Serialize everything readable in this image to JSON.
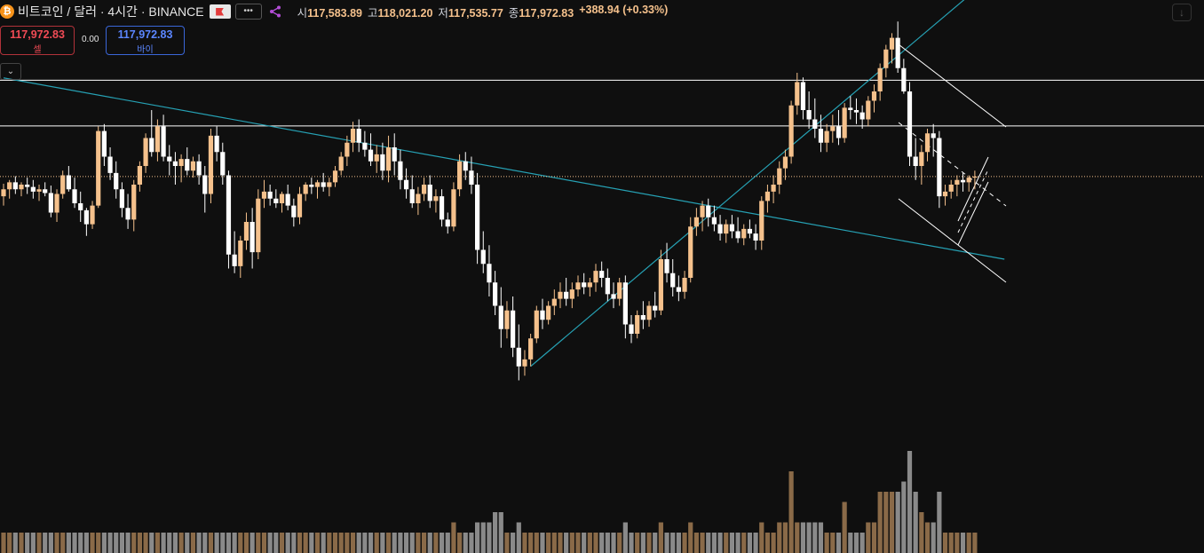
{
  "header": {
    "coin_icon": "bitcoin-icon",
    "coin_glyph": "₿",
    "title": "비트코인 / 달러 · 4시간 · BINANCE",
    "more_glyph": "•••",
    "ohlc": {
      "open_label": "시",
      "open": "117,583.89",
      "high_label": "고",
      "high": "118,021.20",
      "low_label": "저",
      "low": "117,535.77",
      "close_label": "종",
      "close": "117,972.83",
      "change": "+388.94 (+0.33%)"
    }
  },
  "trade": {
    "sell_price": "117,972.83",
    "sell_label": "셀",
    "spread": "0.00",
    "buy_price": "117,972.83",
    "buy_label": "바이"
  },
  "collapse_glyph": "⌄",
  "download_glyph": "↓",
  "colors": {
    "background": "#0f0f0f",
    "up_candle": "#f5c18c",
    "down_candle": "#ffffff",
    "trendline": "#26a1b4",
    "hline": "#ffffff",
    "volume_up": "#8a6a48",
    "volume_down": "#8a8a8a"
  },
  "chart_data": {
    "type": "candlestick",
    "symbol": "BTC/USD",
    "interval": "4h",
    "exchange": "BINANCE",
    "y_range": [
      113000,
      121000
    ],
    "current_price": 117972.83,
    "horizontal_levels": [
      120040,
      119060
    ],
    "candles_note": "approximate values read from chart, [open, high, low, close, volume_k]",
    "candles": [
      [
        117550,
        117820,
        117350,
        117700,
        2
      ],
      [
        117700,
        117900,
        117500,
        117850,
        2
      ],
      [
        117850,
        117980,
        117600,
        117700,
        2
      ],
      [
        117700,
        117850,
        117550,
        117800,
        2
      ],
      [
        117800,
        117950,
        117600,
        117750,
        2
      ],
      [
        117750,
        117900,
        117500,
        117650,
        2
      ],
      [
        117650,
        117800,
        117450,
        117700,
        2
      ],
      [
        117700,
        117850,
        117550,
        117620,
        2
      ],
      [
        117620,
        117780,
        117100,
        117200,
        2
      ],
      [
        117200,
        117700,
        117000,
        117600,
        2
      ],
      [
        117600,
        118100,
        117500,
        118000,
        2
      ],
      [
        118000,
        118200,
        117650,
        117700,
        2
      ],
      [
        117700,
        117950,
        117300,
        117400,
        2
      ],
      [
        117400,
        117650,
        117000,
        117250,
        2
      ],
      [
        117250,
        117300,
        116700,
        116950,
        2
      ],
      [
        116950,
        117450,
        116850,
        117350,
        2
      ],
      [
        117350,
        119050,
        117300,
        118950,
        2
      ],
      [
        118950,
        119100,
        118200,
        118400,
        2
      ],
      [
        118400,
        118600,
        117900,
        118050,
        2
      ],
      [
        118050,
        118300,
        117500,
        117700,
        2
      ],
      [
        117700,
        117850,
        117100,
        117300,
        2
      ],
      [
        117300,
        117600,
        116850,
        117050,
        2
      ],
      [
        117050,
        117900,
        116800,
        117800,
        2
      ],
      [
        117800,
        118300,
        117650,
        118200,
        2
      ],
      [
        118200,
        118900,
        118050,
        118800,
        2
      ],
      [
        118800,
        119400,
        118400,
        118500,
        2
      ],
      [
        118500,
        119200,
        118300,
        119050,
        2
      ],
      [
        119050,
        119300,
        118300,
        118400,
        2
      ],
      [
        118400,
        118650,
        118000,
        118300,
        2
      ],
      [
        118300,
        118500,
        117800,
        118200,
        2
      ],
      [
        118200,
        118450,
        117850,
        118350,
        2
      ],
      [
        118350,
        118600,
        118000,
        118100,
        2
      ],
      [
        118100,
        118400,
        117950,
        118300,
        2
      ],
      [
        118300,
        118450,
        117800,
        118000,
        2
      ],
      [
        118000,
        118200,
        117200,
        117600,
        2
      ],
      [
        117600,
        119000,
        117400,
        118850,
        2
      ],
      [
        118850,
        119050,
        118300,
        118500,
        2
      ],
      [
        118500,
        118700,
        117800,
        118000,
        2
      ],
      [
        118000,
        118100,
        116000,
        116300,
        2
      ],
      [
        116300,
        116800,
        115900,
        116050,
        2
      ],
      [
        116050,
        116700,
        115800,
        116600,
        2
      ],
      [
        116600,
        117200,
        116400,
        117000,
        2
      ],
      [
        117000,
        117300,
        116000,
        116350,
        2
      ],
      [
        116350,
        117700,
        116200,
        117500,
        2
      ],
      [
        117500,
        117900,
        117300,
        117650,
        2
      ],
      [
        117650,
        117800,
        117350,
        117500,
        2
      ],
      [
        117500,
        117700,
        117300,
        117400,
        2
      ],
      [
        117400,
        117650,
        117200,
        117600,
        2
      ],
      [
        117600,
        117800,
        117250,
        117350,
        2
      ],
      [
        117350,
        117500,
        116900,
        117100,
        2
      ],
      [
        117100,
        117750,
        116950,
        117600,
        2
      ],
      [
        117600,
        117850,
        117450,
        117800,
        2
      ],
      [
        117800,
        117950,
        117600,
        117750,
        2
      ],
      [
        117750,
        117900,
        117500,
        117850,
        2
      ],
      [
        117850,
        118050,
        117650,
        117750,
        2
      ],
      [
        117750,
        117950,
        117550,
        117850,
        2
      ],
      [
        117850,
        118200,
        117750,
        118100,
        2
      ],
      [
        118100,
        118500,
        118000,
        118400,
        2
      ],
      [
        118400,
        118850,
        118200,
        118700,
        2
      ],
      [
        118700,
        119150,
        118500,
        119000,
        2
      ],
      [
        119000,
        119200,
        118500,
        118700,
        2
      ],
      [
        118700,
        118950,
        118400,
        118550,
        2
      ],
      [
        118550,
        118900,
        118200,
        118300,
        2
      ],
      [
        118300,
        118650,
        118050,
        118450,
        2
      ],
      [
        118450,
        118700,
        117900,
        118100,
        2
      ],
      [
        118100,
        118850,
        117850,
        118600,
        2
      ],
      [
        118600,
        118900,
        118000,
        118300,
        2
      ],
      [
        118300,
        118550,
        117700,
        117900,
        2
      ],
      [
        117900,
        118150,
        117500,
        117700,
        2
      ],
      [
        117700,
        118000,
        117300,
        117400,
        2
      ],
      [
        117400,
        117750,
        117150,
        117600,
        2
      ],
      [
        117600,
        117950,
        117450,
        117800,
        2
      ],
      [
        117800,
        118000,
        117300,
        117450,
        2
      ],
      [
        117450,
        117700,
        117200,
        117550,
        2
      ],
      [
        117550,
        117700,
        116900,
        117050,
        2
      ],
      [
        117050,
        117200,
        116750,
        116900,
        2
      ],
      [
        116900,
        117850,
        116800,
        117700,
        3
      ],
      [
        117700,
        118450,
        117550,
        118300,
        2
      ],
      [
        118300,
        118500,
        117900,
        118100,
        2
      ],
      [
        118100,
        118400,
        117600,
        117800,
        2
      ],
      [
        117800,
        118050,
        116100,
        116400,
        3
      ],
      [
        116400,
        116800,
        115900,
        116100,
        3
      ],
      [
        116100,
        116500,
        115400,
        115700,
        3
      ],
      [
        115700,
        115950,
        115000,
        115200,
        4
      ],
      [
        115200,
        115600,
        114300,
        114700,
        4
      ],
      [
        114700,
        115300,
        114500,
        115100,
        2
      ],
      [
        115100,
        115400,
        114100,
        114300,
        2
      ],
      [
        114300,
        114800,
        113600,
        113900,
        3
      ],
      [
        113900,
        114250,
        113700,
        114050,
        2
      ],
      [
        114050,
        114600,
        113900,
        114500,
        2
      ],
      [
        114500,
        115200,
        114400,
        115100,
        2
      ],
      [
        115100,
        115350,
        114700,
        114900,
        2
      ],
      [
        114900,
        115300,
        114800,
        115200,
        2
      ],
      [
        115200,
        115550,
        115000,
        115350,
        2
      ],
      [
        115350,
        115700,
        115150,
        115500,
        2
      ],
      [
        115500,
        115800,
        115200,
        115350,
        2
      ],
      [
        115350,
        115700,
        115150,
        115550,
        2
      ],
      [
        115550,
        115850,
        115400,
        115700,
        2
      ],
      [
        115700,
        115900,
        115450,
        115600,
        2
      ],
      [
        115600,
        115800,
        115400,
        115700,
        2
      ],
      [
        115700,
        116100,
        115500,
        115950,
        2
      ],
      [
        115950,
        116150,
        115600,
        115800,
        2
      ],
      [
        115800,
        116000,
        115300,
        115450,
        2
      ],
      [
        115450,
        115700,
        115150,
        115350,
        2
      ],
      [
        115350,
        115800,
        115200,
        115700,
        2
      ],
      [
        115700,
        115850,
        114500,
        114800,
        3
      ],
      [
        114800,
        115000,
        114400,
        114600,
        2
      ],
      [
        114600,
        115100,
        114500,
        115000,
        2
      ],
      [
        115000,
        115300,
        114700,
        114900,
        2
      ],
      [
        114900,
        115300,
        114750,
        115200,
        2
      ],
      [
        115200,
        115500,
        114950,
        115100,
        2
      ],
      [
        115100,
        116400,
        115000,
        116200,
        3
      ],
      [
        116200,
        116550,
        115700,
        115900,
        2
      ],
      [
        115900,
        116200,
        115400,
        115600,
        2
      ],
      [
        115600,
        115850,
        115300,
        115500,
        2
      ],
      [
        115500,
        115950,
        115350,
        115800,
        2
      ],
      [
        115800,
        117100,
        115700,
        116900,
        3
      ],
      [
        116900,
        117300,
        116700,
        117100,
        2
      ],
      [
        117100,
        117450,
        116800,
        117350,
        2
      ],
      [
        117350,
        117500,
        116900,
        117100,
        2
      ],
      [
        117100,
        117350,
        116800,
        116950,
        2
      ],
      [
        116950,
        117150,
        116600,
        116750,
        2
      ],
      [
        116750,
        117050,
        116550,
        116950,
        2
      ],
      [
        116950,
        117150,
        116650,
        116800,
        2
      ],
      [
        116800,
        117100,
        116550,
        116650,
        2
      ],
      [
        116650,
        116950,
        116500,
        116850,
        2
      ],
      [
        116850,
        117050,
        116650,
        116750,
        2
      ],
      [
        116750,
        116950,
        116400,
        116600,
        2
      ],
      [
        116600,
        117550,
        116400,
        117450,
        3
      ],
      [
        117450,
        117800,
        117200,
        117650,
        2
      ],
      [
        117650,
        118000,
        117400,
        117800,
        2
      ],
      [
        117800,
        118300,
        117600,
        118150,
        3
      ],
      [
        118150,
        118550,
        117900,
        118400,
        3
      ],
      [
        118400,
        119600,
        118250,
        119500,
        8
      ],
      [
        119500,
        120200,
        119300,
        120000,
        3
      ],
      [
        120000,
        120100,
        119200,
        119400,
        3
      ],
      [
        119400,
        119800,
        119000,
        119200,
        3
      ],
      [
        119200,
        119650,
        118800,
        119000,
        3
      ],
      [
        119000,
        119300,
        118500,
        118700,
        3
      ],
      [
        118700,
        119100,
        118500,
        118950,
        2
      ],
      [
        118950,
        119300,
        118700,
        119050,
        2
      ],
      [
        119050,
        119400,
        118650,
        118800,
        2
      ],
      [
        118800,
        119550,
        118700,
        119450,
        5
      ],
      [
        119450,
        119700,
        119200,
        119400,
        2
      ],
      [
        119400,
        119650,
        119100,
        119350,
        2
      ],
      [
        119350,
        119500,
        119000,
        119200,
        2
      ],
      [
        119200,
        119700,
        119050,
        119600,
        3
      ],
      [
        119600,
        119950,
        119350,
        119800,
        3
      ],
      [
        119800,
        120400,
        119600,
        120300,
        6
      ],
      [
        120300,
        120800,
        120100,
        120700,
        6
      ],
      [
        120700,
        121050,
        120400,
        120950,
        6
      ],
      [
        120950,
        121300,
        120200,
        120300,
        6
      ],
      [
        120300,
        120500,
        119750,
        119800,
        7
      ],
      [
        119800,
        120000,
        118200,
        118400,
        10
      ],
      [
        118400,
        118800,
        117900,
        118200,
        6
      ],
      [
        118200,
        118650,
        117800,
        118500,
        4
      ],
      [
        118500,
        119000,
        118300,
        118900,
        3
      ],
      [
        118900,
        119100,
        118400,
        118800,
        3
      ],
      [
        118800,
        118950,
        117300,
        117550,
        6
      ],
      [
        117550,
        117800,
        117350,
        117650,
        2
      ],
      [
        117650,
        117900,
        117500,
        117800,
        2
      ],
      [
        117800,
        118000,
        117550,
        117900,
        2
      ],
      [
        117900,
        118050,
        117650,
        117850,
        2
      ],
      [
        117850,
        118000,
        117650,
        117950,
        2
      ],
      [
        117950,
        118100,
        117700,
        117972.83,
        2
      ]
    ],
    "trendlines": [
      {
        "from": {
          "candle": 0,
          "price": 120090
        },
        "to": {
          "candle": 169,
          "price": 116200
        }
      },
      {
        "from": {
          "candle": 89,
          "price": 113900
        },
        "to": {
          "candle": 169,
          "price": 122500
        }
      }
    ],
    "grid": false,
    "legend": "none"
  }
}
